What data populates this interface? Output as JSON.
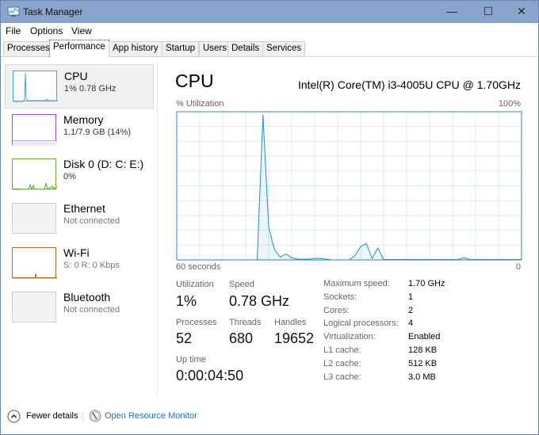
{
  "window": {
    "title": "Task Manager",
    "minimize": "—",
    "maximize": "☐",
    "close": "✕"
  },
  "menu": [
    "File",
    "Options",
    "View"
  ],
  "tabs": [
    {
      "label": "Processes"
    },
    {
      "label": "Performance",
      "active": true
    },
    {
      "label": "App history"
    },
    {
      "label": "Startup"
    },
    {
      "label": "Users"
    },
    {
      "label": "Details"
    },
    {
      "label": "Services"
    }
  ],
  "sidebar": [
    {
      "name": "CPU",
      "sub": "1% 0.78 GHz",
      "color": "#4a9fd8",
      "selected": true
    },
    {
      "name": "Memory",
      "sub": "1.1/7.9 GB (14%)",
      "color": "#a94fc1"
    },
    {
      "name": "Disk 0 (D: C: E:)",
      "sub": "0%",
      "color": "#5ca833"
    },
    {
      "name": "Ethernet",
      "sub": "Not connected",
      "color": "#cccccc"
    },
    {
      "name": "Wi-Fi",
      "sub": "S: 0 R: 0 Kbps",
      "color": "#b86a22"
    },
    {
      "name": "Bluetooth",
      "sub": "Not connected",
      "color": "#cccccc"
    }
  ],
  "main": {
    "title": "CPU",
    "model": "Intel(R) Core(TM) i3-4005U CPU @ 1.70GHz",
    "graph_label": "% Utilization",
    "graph_max": "100%",
    "graph_left": "60 seconds",
    "graph_right": "0",
    "graph_color": "#1f8ad0",
    "cpu_history": [
      0,
      0,
      0,
      0,
      0,
      0,
      0,
      0,
      0,
      0,
      0,
      0,
      0,
      0,
      0,
      98,
      22,
      7,
      2,
      4,
      1.5,
      0.5,
      0.5,
      0.5,
      1,
      1,
      0.5,
      0,
      0,
      0,
      0,
      3,
      9,
      11,
      1,
      8,
      0.3,
      0.3,
      0.3,
      0.3,
      0.3,
      0.3,
      0.3,
      0.3,
      0.3,
      0.3,
      0.3,
      0.3,
      0.3,
      0.3,
      1.5,
      0.3,
      0.3,
      0.3,
      0.3,
      0.3,
      0.3,
      0.3,
      0.3,
      0.3,
      0.3
    ],
    "stats": {
      "utilization_label": "Utilization",
      "utilization": "1%",
      "speed_label": "Speed",
      "speed": "0.78 GHz",
      "processes_label": "Processes",
      "processes": "52",
      "threads_label": "Threads",
      "threads": "680",
      "handles_label": "Handles",
      "handles": "19652",
      "uptime_label": "Up time",
      "uptime": "0:00:04:50"
    },
    "specs": [
      {
        "k": "Maximum speed:",
        "v": "1.70 GHz"
      },
      {
        "k": "Sockets:",
        "v": "1"
      },
      {
        "k": "Cores:",
        "v": "2"
      },
      {
        "k": "Logical processors:",
        "v": "4"
      },
      {
        "k": "Virtualization:",
        "v": "Enabled"
      },
      {
        "k": "L1 cache:",
        "v": "128 KB"
      },
      {
        "k": "L2 cache:",
        "v": "512 KB"
      },
      {
        "k": "L3 cache:",
        "v": "3.0 MB"
      }
    ]
  },
  "footer": {
    "fewer": "Fewer details",
    "monitor": "Open Resource Monitor"
  }
}
